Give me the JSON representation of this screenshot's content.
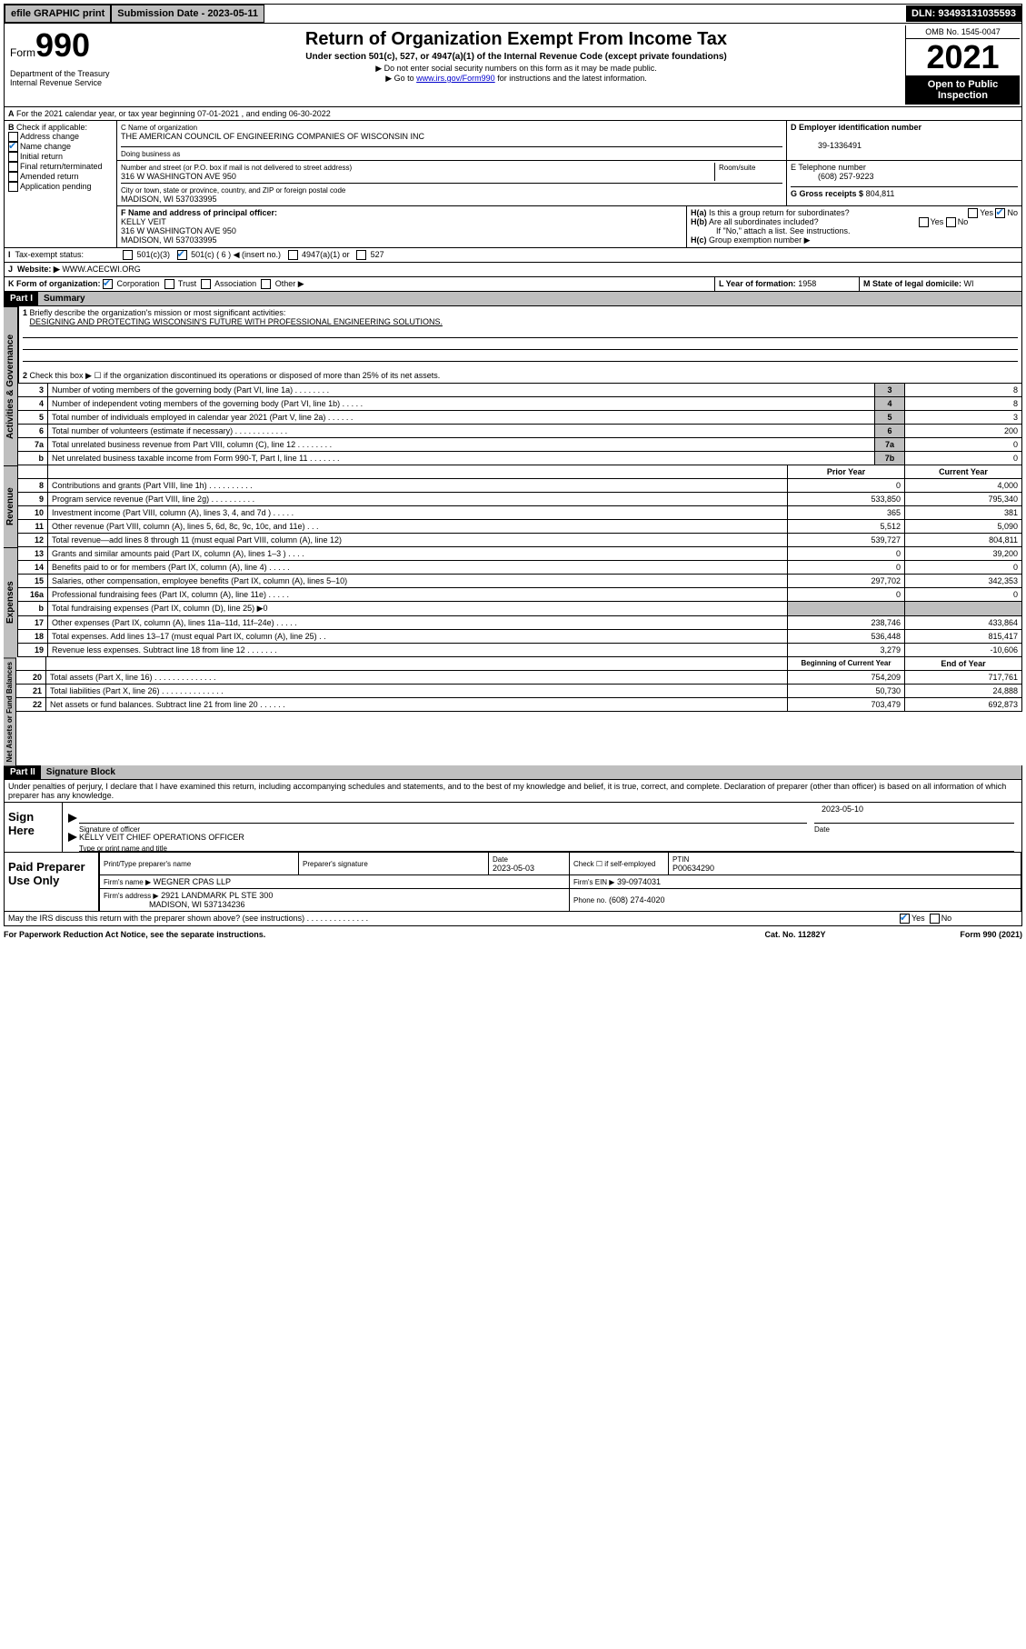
{
  "topbar": {
    "efile": "efile GRAPHIC print",
    "sub_label": "Submission Date - 2023-05-11",
    "dln": "DLN: 93493131035593"
  },
  "header": {
    "form_word": "Form",
    "form_num": "990",
    "dept": "Department of the Treasury\nInternal Revenue Service",
    "title": "Return of Organization Exempt From Income Tax",
    "subtitle": "Under section 501(c), 527, or 4947(a)(1) of the Internal Revenue Code (except private foundations)",
    "note1": "▶ Do not enter social security numbers on this form as it may be made public.",
    "note2_pre": "▶ Go to ",
    "note2_link": "www.irs.gov/Form990",
    "note2_post": " for instructions and the latest information.",
    "omb": "OMB No. 1545-0047",
    "year": "2021",
    "open": "Open to Public Inspection"
  },
  "A": {
    "text": "For the 2021 calendar year, or tax year beginning 07-01-2021 , and ending 06-30-2022"
  },
  "B": {
    "label": "Check if applicable:",
    "opts": [
      "Address change",
      "Name change",
      "Initial return",
      "Final return/terminated",
      "Amended return",
      "Application pending"
    ],
    "checked": [
      false,
      true,
      false,
      false,
      false,
      false
    ]
  },
  "C": {
    "name_lab": "C Name of organization",
    "name": "THE AMERICAN COUNCIL OF ENGINEERING COMPANIES OF WISCONSIN INC",
    "dba_lab": "Doing business as",
    "street_lab": "Number and street (or P.O. box if mail is not delivered to street address)",
    "room_lab": "Room/suite",
    "street": "316 W WASHINGTON AVE 950",
    "city_lab": "City or town, state or province, country, and ZIP or foreign postal code",
    "city": "MADISON, WI  537033995"
  },
  "D": {
    "lab": "D Employer identification number",
    "val": "39-1336491"
  },
  "E": {
    "lab": "E Telephone number",
    "val": "(608) 257-9223"
  },
  "G": {
    "lab": "G Gross receipts $",
    "val": "804,811"
  },
  "F": {
    "lab": "F  Name and address of principal officer:",
    "name": "KELLY VEIT",
    "addr1": "316 W WASHINGTON AVE 950",
    "addr2": "MADISON, WI  537033995"
  },
  "H": {
    "a": "Is this a group return for subordinates?",
    "b": "Are all subordinates included?",
    "b_note": "If \"No,\" attach a list. See instructions.",
    "c": "Group exemption number ▶",
    "ha_no": true
  },
  "I": {
    "lab": "Tax-exempt status:",
    "opts": [
      "501(c)(3)",
      "501(c) ( 6 ) ◀ (insert no.)",
      "4947(a)(1) or",
      "527"
    ],
    "checked": [
      false,
      true,
      false,
      false
    ]
  },
  "J": {
    "lab": "Website: ▶",
    "val": "WWW.ACECWI.ORG"
  },
  "K": {
    "lab": "K Form of organization:",
    "opts": [
      "Corporation",
      "Trust",
      "Association",
      "Other ▶"
    ],
    "checked": [
      true,
      false,
      false,
      false
    ]
  },
  "L": {
    "lab": "L Year of formation:",
    "val": "1958"
  },
  "M": {
    "lab": "M State of legal domicile:",
    "val": "WI"
  },
  "parts": {
    "p1": "Part I",
    "p1_title": "Summary",
    "p2": "Part II",
    "p2_title": "Signature Block"
  },
  "summary": {
    "q1": "Briefly describe the organization's mission or most significant activities:",
    "q1_val": "DESIGNING AND PROTECTING WISCONSIN'S FUTURE WITH PROFESSIONAL ENGINEERING SOLUTIONS.",
    "q2": "Check this box ▶ ☐  if the organization discontinued its operations or disposed of more than 25% of its net assets.",
    "rows_gov": [
      {
        "n": "3",
        "t": "Number of voting members of the governing body (Part VI, line 1a)   .    .    .    .    .    .    .    .",
        "l": "3",
        "v": "8"
      },
      {
        "n": "4",
        "t": "Number of independent voting members of the governing body (Part VI, line 1b)   .    .    .    .    .",
        "l": "4",
        "v": "8"
      },
      {
        "n": "5",
        "t": "Total number of individuals employed in calendar year 2021 (Part V, line 2a)   .    .    .    .    .    .",
        "l": "5",
        "v": "3"
      },
      {
        "n": "6",
        "t": "Total number of volunteers (estimate if necessary)   .    .    .    .    .    .    .    .    .    .    .    .",
        "l": "6",
        "v": "200"
      },
      {
        "n": "7a",
        "t": "Total unrelated business revenue from Part VIII, column (C), line 12   .    .    .    .    .    .    .    .",
        "l": "7a",
        "v": "0"
      },
      {
        "n": "b",
        "t": "Net unrelated business taxable income from Form 990-T, Part I, line 11   .    .    .    .    .    .    .",
        "l": "7b",
        "v": "0"
      }
    ],
    "col_prior": "Prior Year",
    "col_curr": "Current Year",
    "rows_rev": [
      {
        "n": "8",
        "t": "Contributions and grants (Part VIII, line 1h)   .    .    .    .    .    .    .    .    .    .",
        "p": "0",
        "c": "4,000"
      },
      {
        "n": "9",
        "t": "Program service revenue (Part VIII, line 2g)   .    .    .    .    .    .    .    .    .    .",
        "p": "533,850",
        "c": "795,340"
      },
      {
        "n": "10",
        "t": "Investment income (Part VIII, column (A), lines 3, 4, and 7d )   .    .    .    .    .",
        "p": "365",
        "c": "381"
      },
      {
        "n": "11",
        "t": "Other revenue (Part VIII, column (A), lines 5, 6d, 8c, 9c, 10c, and 11e)   .    .    .",
        "p": "5,512",
        "c": "5,090"
      },
      {
        "n": "12",
        "t": "Total revenue—add lines 8 through 11 (must equal Part VIII, column (A), line 12)",
        "p": "539,727",
        "c": "804,811"
      }
    ],
    "rows_exp": [
      {
        "n": "13",
        "t": "Grants and similar amounts paid (Part IX, column (A), lines 1–3 )   .    .    .    .",
        "p": "0",
        "c": "39,200"
      },
      {
        "n": "14",
        "t": "Benefits paid to or for members (Part IX, column (A), line 4)   .    .    .    .    .",
        "p": "0",
        "c": "0"
      },
      {
        "n": "15",
        "t": "Salaries, other compensation, employee benefits (Part IX, column (A), lines 5–10)",
        "p": "297,702",
        "c": "342,353"
      },
      {
        "n": "16a",
        "t": "Professional fundraising fees (Part IX, column (A), line 11e)   .    .    .    .    .",
        "p": "0",
        "c": "0"
      },
      {
        "n": "b",
        "t": "Total fundraising expenses (Part IX, column (D), line 25) ▶0",
        "p": "",
        "c": "",
        "shade": true
      },
      {
        "n": "17",
        "t": "Other expenses (Part IX, column (A), lines 11a–11d, 11f–24e)   .    .    .    .    .",
        "p": "238,746",
        "c": "433,864"
      },
      {
        "n": "18",
        "t": "Total expenses. Add lines 13–17 (must equal Part IX, column (A), line 25)   .    .",
        "p": "536,448",
        "c": "815,417"
      },
      {
        "n": "19",
        "t": "Revenue less expenses. Subtract line 18 from line 12   .    .    .    .    .    .    .",
        "p": "3,279",
        "c": "-10,606"
      }
    ],
    "col_beg": "Beginning of Current Year",
    "col_end": "End of Year",
    "rows_net": [
      {
        "n": "20",
        "t": "Total assets (Part X, line 16)   .    .    .    .    .    .    .    .    .    .    .    .    .    .",
        "p": "754,209",
        "c": "717,761"
      },
      {
        "n": "21",
        "t": "Total liabilities (Part X, line 26)   .    .    .    .    .    .    .    .    .    .    .    .    .    .",
        "p": "50,730",
        "c": "24,888"
      },
      {
        "n": "22",
        "t": "Net assets or fund balances. Subtract line 21 from line 20   .    .    .    .    .    .",
        "p": "703,479",
        "c": "692,873"
      }
    ],
    "vtabs": {
      "gov": "Activities & Governance",
      "rev": "Revenue",
      "exp": "Expenses",
      "net": "Net Assets or Fund Balances"
    }
  },
  "sig": {
    "penalty": "Under penalties of perjury, I declare that I have examined this return, including accompanying schedules and statements, and to the best of my knowledge and belief, it is true, correct, and complete. Declaration of preparer (other than officer) is based on all information of which preparer has any knowledge.",
    "sign_here": "Sign Here",
    "sig_officer": "Signature of officer",
    "date": "Date",
    "sig_date": "2023-05-10",
    "name": "KELLY VEIT  CHIEF OPERATIONS OFFICER",
    "name_lab": "Type or print name and title",
    "paid": "Paid Preparer Use Only",
    "prep_name": "Print/Type preparer's name",
    "prep_sig": "Preparer's signature",
    "prep_date_lab": "Date",
    "prep_date": "2023-05-03",
    "self": "Check ☐ if self-employed",
    "ptin_lab": "PTIN",
    "ptin": "P00634290",
    "firm_lab": "Firm's name      ▶",
    "firm": "WEGNER CPAS LLP",
    "ein_lab": "Firm's EIN ▶",
    "ein": "39-0974031",
    "addr_lab": "Firm's address ▶",
    "addr1": "2921 LANDMARK PL STE 300",
    "addr2": "MADISON, WI  537134236",
    "phone_lab": "Phone no.",
    "phone": "(608) 274-4020",
    "discuss": "May the IRS discuss this return with the preparer shown above? (see instructions)   .    .    .    .    .    .    .    .    .    .    .    .    .    .",
    "discuss_yes": true
  },
  "footer": {
    "l": "For Paperwork Reduction Act Notice, see the separate instructions.",
    "c": "Cat. No. 11282Y",
    "r": "Form 990 (2021)"
  }
}
